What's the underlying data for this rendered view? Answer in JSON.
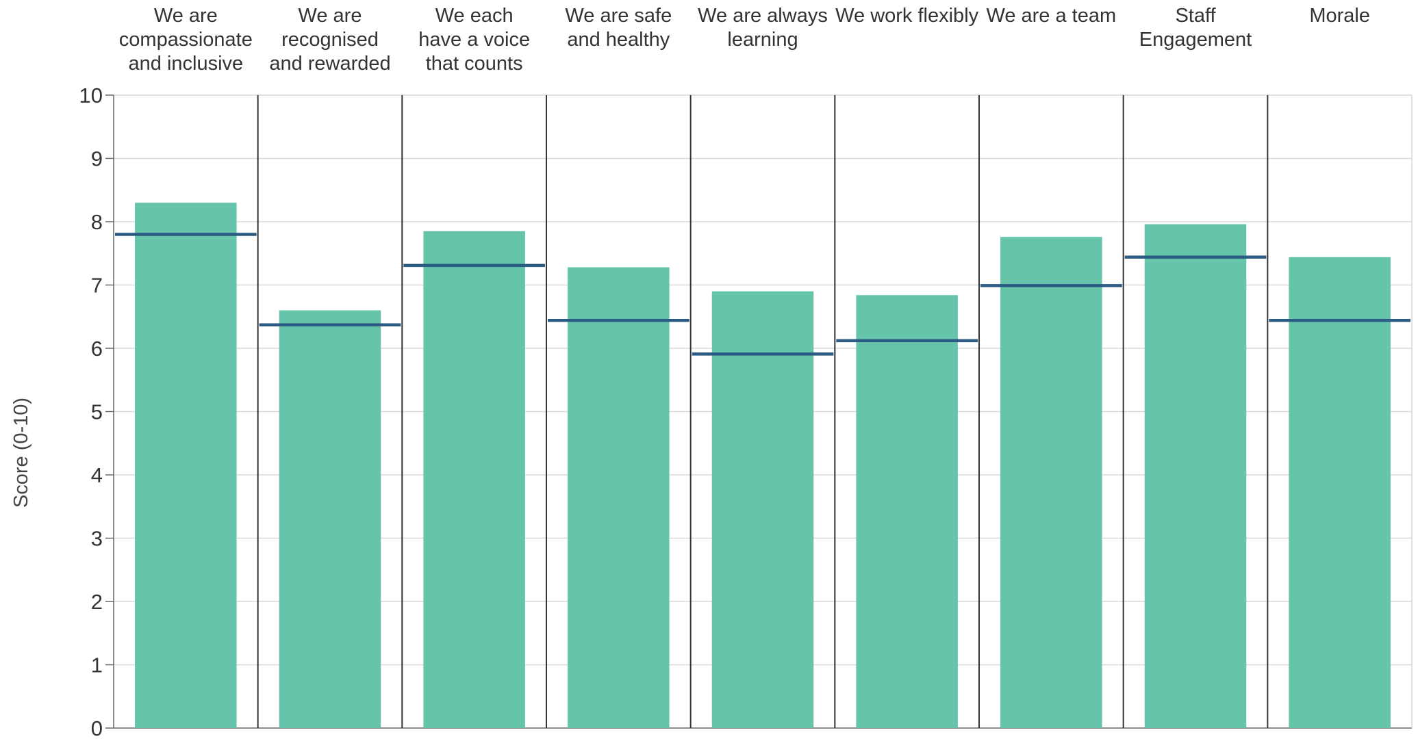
{
  "chart_data": {
    "type": "bar",
    "title": "",
    "xlabel": "",
    "ylabel": "Score (0-10)",
    "ylim": [
      0,
      10
    ],
    "yticks": [
      0,
      1,
      2,
      3,
      4,
      5,
      6,
      7,
      8,
      9,
      10
    ],
    "grid": true,
    "legend": "none",
    "categories": [
      [
        "We are",
        "compassionate",
        "and inclusive"
      ],
      [
        "We are",
        "recognised",
        "and rewarded"
      ],
      [
        "We each",
        "have a voice",
        "that counts"
      ],
      [
        "We are safe",
        "and healthy"
      ],
      [
        "We are always",
        "learning"
      ],
      [
        "We work flexibly"
      ],
      [
        "We are a team"
      ],
      [
        "Staff",
        "Engagement"
      ],
      [
        "Morale"
      ]
    ],
    "series": [
      {
        "type": "bar",
        "values": [
          8.3,
          6.6,
          7.85,
          7.28,
          6.9,
          6.84,
          7.76,
          7.96,
          7.44
        ]
      },
      {
        "type": "marker",
        "values": [
          7.8,
          6.37,
          7.31,
          6.44,
          5.91,
          6.12,
          6.99,
          7.44,
          6.44
        ]
      }
    ],
    "colors": {
      "bar": "#66c4aa",
      "marker": "#2b5a82",
      "divider": "#333333",
      "grid": "#d9d9d9",
      "axis": "#666666"
    }
  }
}
